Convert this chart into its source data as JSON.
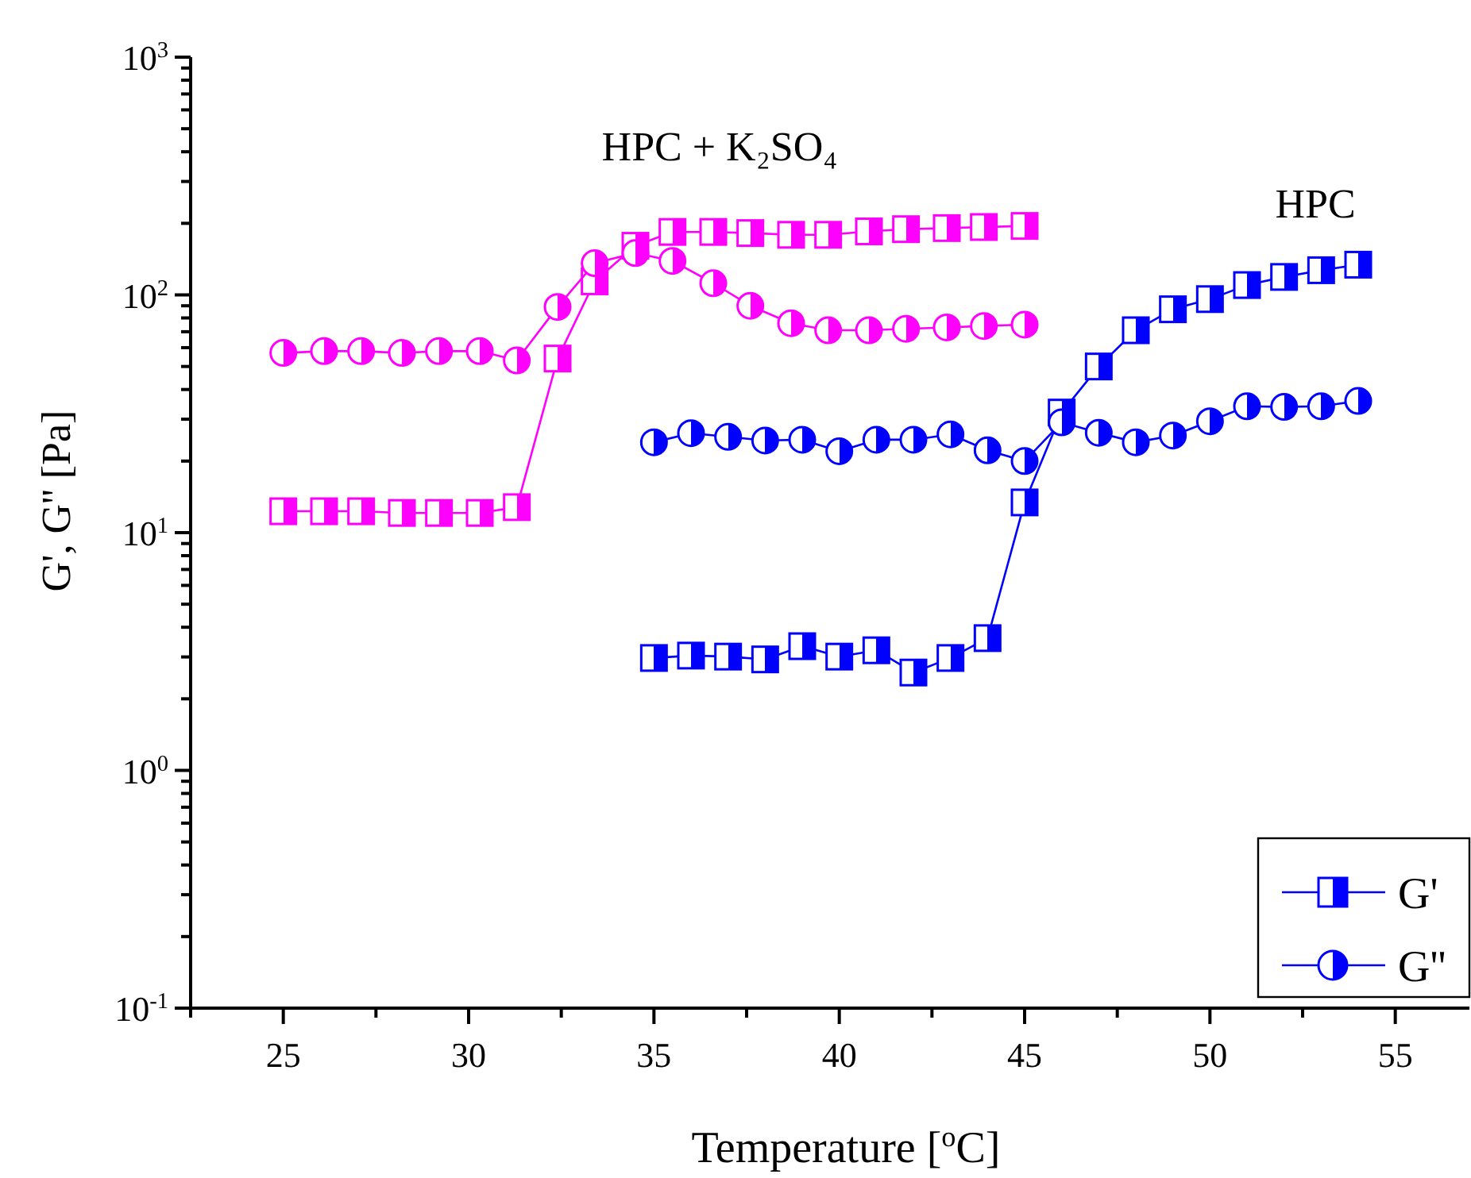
{
  "chart_data": {
    "type": "line",
    "xlabel": "Temperature [$^{o}$C]",
    "ylabel": "G', G'' [Pa]",
    "log": "y",
    "legend": "bottom right",
    "grid": false,
    "line_style": "solid",
    "xlim": [
      22.5,
      57
    ],
    "xticks": [
      {
        "value": 22.5,
        "label": null
      },
      25,
      {
        "value": 27.5,
        "label": null
      },
      30,
      {
        "value": 32.5,
        "label": null
      },
      35,
      {
        "value": 37.5,
        "label": null
      },
      40,
      {
        "value": 42.5,
        "label": null
      },
      45,
      {
        "value": 47.5,
        "label": null
      },
      50,
      {
        "value": 52.5,
        "label": null
      },
      55
    ],
    "ylim": [
      0.1,
      1000
    ],
    "yticks": [
      {
        "value": 0.1,
        "label": "10$^{-1}$"
      },
      {
        "value": 0.2,
        "label": null
      },
      {
        "value": 0.3,
        "label": null
      },
      {
        "value": 0.4,
        "label": null
      },
      {
        "value": 0.5,
        "label": null
      },
      {
        "value": 0.6,
        "label": null
      },
      {
        "value": 0.7,
        "label": null
      },
      {
        "value": 0.8,
        "label": null
      },
      {
        "value": 0.9,
        "label": null
      },
      {
        "value": 1,
        "label": "10$^{0}$"
      },
      {
        "value": 2,
        "label": null
      },
      {
        "value": 3,
        "label": null
      },
      {
        "value": 4,
        "label": null
      },
      {
        "value": 5,
        "label": null
      },
      {
        "value": 6,
        "label": null
      },
      {
        "value": 7,
        "label": null
      },
      {
        "value": 8,
        "label": null
      },
      {
        "value": 9,
        "label": null
      },
      {
        "value": 10,
        "label": "10$^{1}$"
      },
      {
        "value": 20,
        "label": null
      },
      {
        "value": 30,
        "label": null
      },
      {
        "value": 40,
        "label": null
      },
      {
        "value": 50,
        "label": null
      },
      {
        "value": 60,
        "label": null
      },
      {
        "value": 70,
        "label": null
      },
      {
        "value": 80,
        "label": null
      },
      {
        "value": 90,
        "label": null
      },
      {
        "value": 100,
        "label": "10$^{2}$"
      },
      {
        "value": 200,
        "label": null
      },
      {
        "value": 300,
        "label": null
      },
      {
        "value": 400,
        "label": null
      },
      {
        "value": 500,
        "label": null
      },
      {
        "value": 600,
        "label": null
      },
      {
        "value": 700,
        "label": null
      },
      {
        "value": 800,
        "label": null
      },
      {
        "value": 900,
        "label": null
      },
      {
        "value": 1000,
        "label": "10$^{3}$"
      }
    ],
    "annotations": [
      "HPC + K₂SO₄",
      "HPC"
    ],
    "series": [
      {
        "color": "#ff00ff",
        "marker": "square",
        "x": [
          25,
          26.1,
          27.1,
          28.2,
          29.2,
          30.3,
          31.3,
          32.4,
          33.4,
          34.5,
          35.5,
          36.6,
          37.6,
          38.7,
          39.7,
          40.8,
          41.8,
          42.9,
          43.9,
          45
        ],
        "values": [
          12.3,
          12.3,
          12.3,
          12.1,
          12.1,
          12.1,
          12.8,
          54,
          114,
          161,
          184,
          184,
          182,
          179,
          179,
          185,
          189,
          191,
          193,
          195
        ]
      },
      {
        "color": "#ff00ff",
        "marker": "circle",
        "x": [
          25,
          26.1,
          27.1,
          28.2,
          29.2,
          30.3,
          31.3,
          32.4,
          33.4,
          34.5,
          35.5,
          36.6,
          37.6,
          38.7,
          39.7,
          40.8,
          41.8,
          42.9,
          43.9,
          45
        ],
        "values": [
          57,
          58,
          58,
          57,
          58,
          58,
          53,
          89,
          136,
          150,
          139,
          112,
          90,
          76,
          71,
          71,
          72,
          73,
          74,
          75
        ]
      },
      {
        "name": "G'",
        "color": "#0000ff",
        "marker": "square",
        "x": [
          35,
          36,
          37,
          38,
          39,
          40,
          41,
          42,
          43,
          44,
          45,
          46,
          47,
          48,
          49,
          50,
          51,
          52,
          53,
          54
        ],
        "values": [
          2.97,
          3.04,
          3.01,
          2.93,
          3.33,
          3.01,
          3.2,
          2.58,
          2.97,
          3.6,
          13.4,
          32,
          50,
          71,
          87,
          96,
          110,
          119,
          127,
          134
        ]
      },
      {
        "name": "G''",
        "color": "#0000ff",
        "marker": "circle",
        "x": [
          35,
          36,
          37,
          38,
          39,
          40,
          41,
          42,
          43,
          44,
          45,
          46,
          47,
          48,
          49,
          50,
          51,
          52,
          53,
          54
        ],
        "values": [
          24,
          26.2,
          25.3,
          24.4,
          24.6,
          22,
          24.6,
          24.6,
          25.9,
          22.2,
          20,
          29.1,
          26.3,
          24,
          25.6,
          29.4,
          34,
          33.8,
          34,
          35.8
        ]
      }
    ]
  }
}
